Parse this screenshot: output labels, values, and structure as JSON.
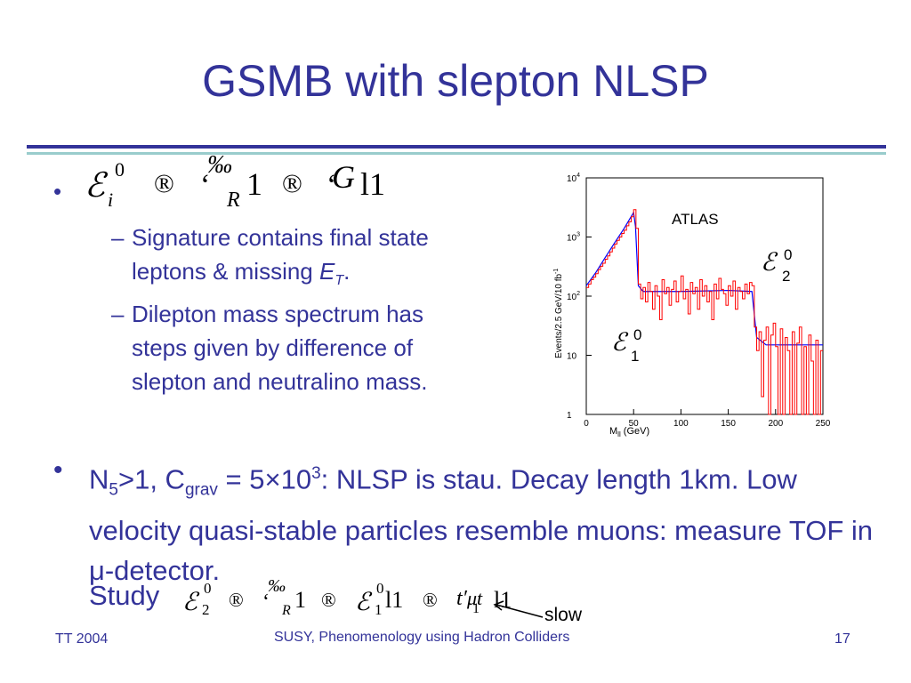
{
  "title": "GSMB with slepton NLSP",
  "bullet1": {
    "formula": {
      "a": "ℰ",
      "a_sup": "0",
      "a_sub": "i",
      "arrow": "®",
      "b": "‘",
      "b_sup": "‰",
      "b_sub": "R",
      "b_tail": "1",
      "arrow2": "®",
      "c": "‘",
      "c_main": "G",
      "c_tail": "l1"
    },
    "sub1_text": "Signature contains final state leptons & missing ",
    "sub1_E": "E",
    "sub1_T": "T",
    "sub1_end": ".",
    "sub2_text": "Dilepton mass spectrum has steps given by difference of slepton and neutralino mass."
  },
  "bullet2": {
    "n": "N",
    "n_sub": "5",
    "n_rest": ">1, C",
    "c_sub": "grav",
    "c_rest": " = 5×10",
    "exp": "3",
    "rest": ": NLSP is stau. Decay length 1km. Low velocity quasi-stable particles resemble muons: measure TOF in μ-detector.",
    "study": "Study",
    "slow": "slow"
  },
  "formula2": {
    "a": "ℰ",
    "a_sup": "0",
    "a_sub": "2",
    "arrow": "®",
    "b": "‘",
    "b_sup": "‰",
    "b_sub": "R",
    "b_tail": "1",
    "c": "ℰ",
    "c_sup": "0",
    "c_sub": "1",
    "c_tail": "l1",
    "d": "t′",
    "d_mid": "μt",
    "d_sub": "1",
    "d_tail": "l1"
  },
  "footer": {
    "left": "TT 2004",
    "center": "SUSY, Phenomenology using Hadron Colliders",
    "right": "17"
  },
  "colors": {
    "title": "#333399",
    "rule_dark": "#333399",
    "rule_light": "#99cccc",
    "histogram": "#ff0000",
    "fit": "#0000ff"
  },
  "chart_data": {
    "type": "line",
    "label": "ATLAS",
    "xlabel": "M",
    "xlabel_sub": "ll",
    "xlabel_unit": " (GeV)",
    "ylabel": "Events/2.5 GeV/10 fb",
    "ylabel_sup": "-1",
    "xticks": [
      "0",
      "50",
      "100",
      "150",
      "200",
      "250"
    ],
    "yticks": [
      {
        "base": "1",
        "exp": ""
      },
      {
        "base": "10",
        "exp": ""
      },
      {
        "base": "10",
        "exp": "2"
      },
      {
        "base": "10",
        "exp": "3"
      },
      {
        "base": "10",
        "exp": "4"
      }
    ],
    "xlim": [
      0,
      250
    ],
    "ylim": [
      1,
      10000
    ],
    "log_y": true,
    "annotations": [
      {
        "glyph": "ℰ",
        "sup": "0",
        "sub": "2"
      },
      {
        "glyph": "ℰ",
        "sup": "0",
        "sub": "1"
      }
    ],
    "series": [
      {
        "values": [
          [
            0,
            150
          ],
          [
            10,
            250
          ],
          [
            20,
            450
          ],
          [
            30,
            800
          ],
          [
            40,
            1400
          ],
          [
            50,
            2600
          ],
          [
            52,
            1500
          ],
          [
            55,
            150
          ],
          [
            60,
            120
          ],
          [
            100,
            120
          ],
          [
            150,
            125
          ],
          [
            175,
            120
          ],
          [
            180,
            20
          ],
          [
            190,
            15
          ],
          [
            250,
            15
          ]
        ]
      },
      {
        "values": [
          [
            0,
            140
          ],
          [
            2.5,
            160
          ],
          [
            5,
            190
          ],
          [
            7.5,
            210
          ],
          [
            10,
            240
          ],
          [
            12.5,
            280
          ],
          [
            15,
            320
          ],
          [
            17.5,
            360
          ],
          [
            20,
            420
          ],
          [
            22.5,
            480
          ],
          [
            25,
            560
          ],
          [
            27.5,
            650
          ],
          [
            30,
            760
          ],
          [
            32.5,
            880
          ],
          [
            35,
            1000
          ],
          [
            37.5,
            1150
          ],
          [
            40,
            1300
          ],
          [
            42.5,
            1550
          ],
          [
            45,
            1800
          ],
          [
            47.5,
            2200
          ],
          [
            50,
            2900
          ],
          [
            52.5,
            1400
          ],
          [
            55,
            160
          ],
          [
            57.5,
            90
          ],
          [
            60,
            140
          ],
          [
            62.5,
            80
          ],
          [
            65,
            170
          ],
          [
            67.5,
            120
          ],
          [
            70,
            60
          ],
          [
            72.5,
            150
          ],
          [
            75,
            100
          ],
          [
            77.5,
            40
          ],
          [
            80,
            190
          ],
          [
            82.5,
            110
          ],
          [
            85,
            140
          ],
          [
            87.5,
            70
          ],
          [
            90,
            130
          ],
          [
            92.5,
            180
          ],
          [
            95,
            80
          ],
          [
            97.5,
            120
          ],
          [
            100,
            220
          ],
          [
            102.5,
            90
          ],
          [
            105,
            130
          ],
          [
            107.5,
            50
          ],
          [
            110,
            170
          ],
          [
            112.5,
            110
          ],
          [
            115,
            140
          ],
          [
            117.5,
            60
          ],
          [
            120,
            190
          ],
          [
            122.5,
            100
          ],
          [
            125,
            150
          ],
          [
            127.5,
            80
          ],
          [
            130,
            120
          ],
          [
            132.5,
            40
          ],
          [
            135,
            160
          ],
          [
            137.5,
            90
          ],
          [
            140,
            200
          ],
          [
            142.5,
            130
          ],
          [
            145,
            110
          ],
          [
            147.5,
            70
          ],
          [
            150,
            150
          ],
          [
            152.5,
            100
          ],
          [
            155,
            180
          ],
          [
            157.5,
            60
          ],
          [
            160,
            140
          ],
          [
            162.5,
            120
          ],
          [
            165,
            90
          ],
          [
            167.5,
            160
          ],
          [
            170,
            110
          ],
          [
            172.5,
            170
          ],
          [
            175,
            150
          ],
          [
            177.5,
            30
          ],
          [
            180,
            12
          ],
          [
            182.5,
            25
          ],
          [
            185,
            2
          ],
          [
            187.5,
            18
          ],
          [
            190,
            30
          ],
          [
            192.5,
            1
          ],
          [
            195,
            22
          ],
          [
            197.5,
            35
          ],
          [
            200,
            14
          ],
          [
            202.5,
            1
          ],
          [
            205,
            28
          ],
          [
            207.5,
            1
          ],
          [
            210,
            20
          ],
          [
            212.5,
            12
          ],
          [
            215,
            1
          ],
          [
            217.5,
            25
          ],
          [
            220,
            1
          ],
          [
            222.5,
            16
          ],
          [
            225,
            30
          ],
          [
            227.5,
            1
          ],
          [
            230,
            14
          ],
          [
            232.5,
            1
          ],
          [
            235,
            22
          ],
          [
            237.5,
            8
          ],
          [
            240,
            1
          ],
          [
            242.5,
            18
          ],
          [
            245,
            1
          ],
          [
            247.5,
            12
          ],
          [
            250,
            1
          ]
        ]
      }
    ]
  }
}
